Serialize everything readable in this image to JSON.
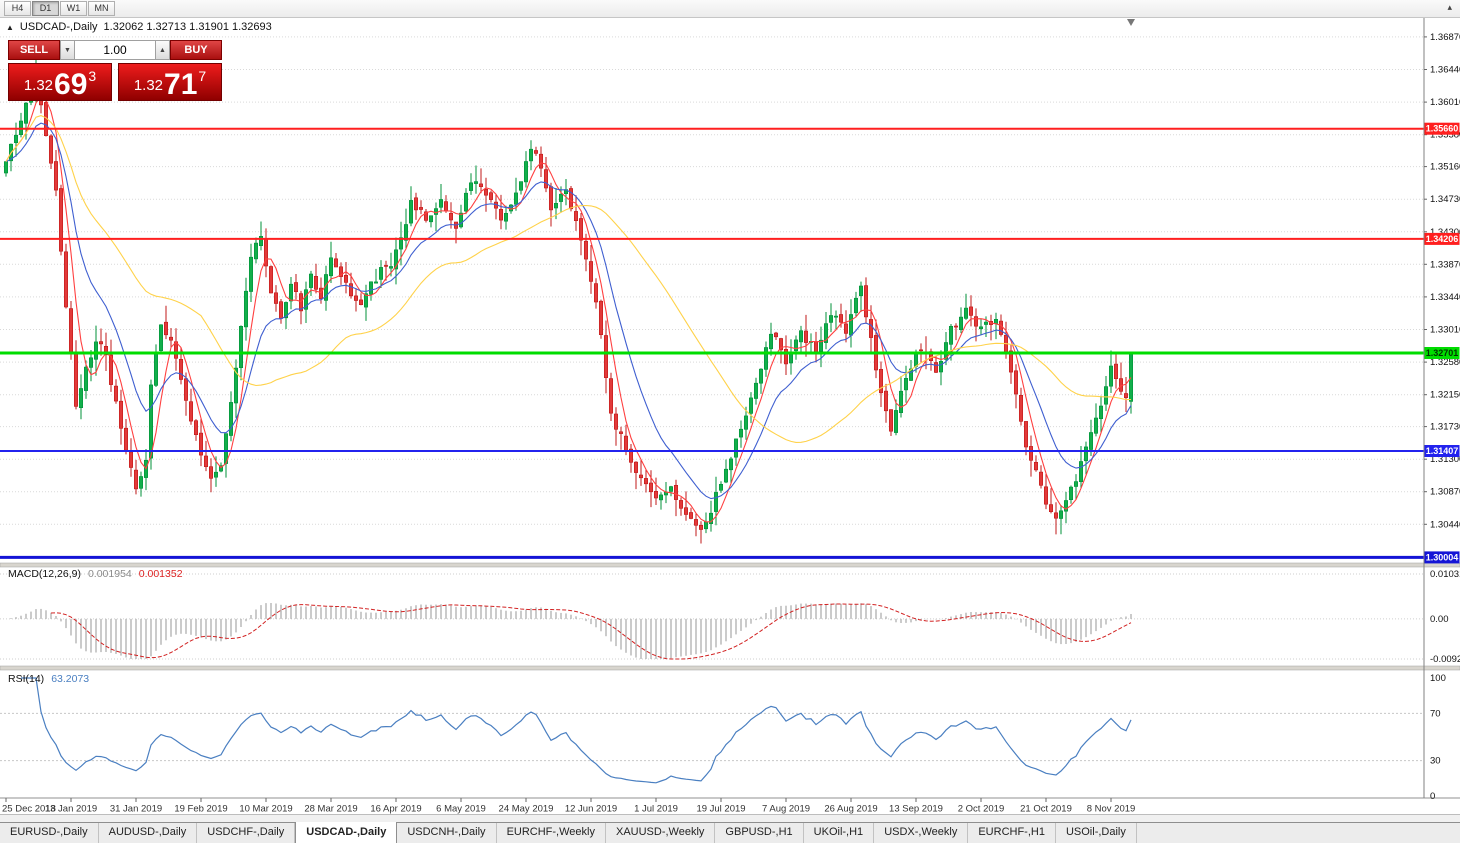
{
  "window": {
    "overflow_icon": "▴"
  },
  "toolbar": {
    "timeframes": [
      {
        "label": "H4",
        "active": false
      },
      {
        "label": "D1",
        "active": true
      },
      {
        "label": "W1",
        "active": false
      },
      {
        "label": "MN",
        "active": false
      }
    ]
  },
  "chart_header": {
    "collapse_icon": "▲",
    "title": "USDCAD-,Daily",
    "ohlc_text": "1.32062 1.32713 1.31901 1.32693"
  },
  "trade_panel": {
    "sell_label": "SELL",
    "buy_label": "BUY",
    "volume": "1.00",
    "spin_down_icon": "▼",
    "spin_up_icon": "▲",
    "sell_price": {
      "figure": "1.32",
      "pips": "69",
      "tick": "3"
    },
    "buy_price": {
      "figure": "1.32",
      "pips": "71",
      "tick": "7"
    }
  },
  "macd_panel": {
    "name": "MACD(12,26,9)",
    "value_main": "0.001954",
    "value_signal": "0.001352",
    "axis_labels": [
      "0.010311",
      "0.00",
      "-0.00920"
    ],
    "axis_values": [
      0.010311,
      0,
      -0.0092
    ]
  },
  "rsi_panel": {
    "name": "RSI(14)",
    "value": "63.2073",
    "axis_labels": [
      "100",
      "70",
      "30",
      "0"
    ],
    "axis_values": [
      100,
      70,
      30,
      0
    ],
    "level_lines": [
      70,
      30
    ]
  },
  "price_axis": {
    "tick_labels": [
      "1.36870",
      "1.36440",
      "1.36010",
      "1.35580",
      "1.35160",
      "1.34730",
      "1.34300",
      "1.33870",
      "1.33440",
      "1.33010",
      "1.32580",
      "1.32150",
      "1.31730",
      "1.31300",
      "1.30870",
      "1.30440"
    ]
  },
  "tabs": [
    {
      "label": "EURUSD-,Daily",
      "active": false
    },
    {
      "label": "AUDUSD-,Daily",
      "active": false
    },
    {
      "label": "USDCHF-,Daily",
      "active": false
    },
    {
      "label": "USDCAD-,Daily",
      "active": true
    },
    {
      "label": "USDCNH-,Daily",
      "active": false
    },
    {
      "label": "EURCHF-,Weekly",
      "active": false
    },
    {
      "label": "XAUUSD-,Weekly",
      "active": false
    },
    {
      "label": "GBPUSD-,H1",
      "active": false
    },
    {
      "label": "UKOil-,H1",
      "active": false
    },
    {
      "label": "USDX-,Weekly",
      "active": false
    },
    {
      "label": "EURCHF-,H1",
      "active": false
    },
    {
      "label": "USOil-,Daily",
      "active": false
    }
  ],
  "chart_data": {
    "type": "candlestick",
    "symbol": "USDCAD",
    "timeframe": "Daily",
    "title": "USDCAD-,Daily",
    "last_candle": {
      "open": 1.32062,
      "high": 1.32713,
      "low": 1.31901,
      "close": 1.32693
    },
    "candle_count": 226,
    "y_range": [
      1.2993,
      1.3712
    ],
    "close_anchors": [
      [
        0,
        1.3525
      ],
      [
        3,
        1.358
      ],
      [
        6,
        1.3645
      ],
      [
        8,
        1.356
      ],
      [
        10,
        1.348
      ],
      [
        12,
        1.333
      ],
      [
        14,
        1.3195
      ],
      [
        16,
        1.3245
      ],
      [
        18,
        1.329
      ],
      [
        20,
        1.3265
      ],
      [
        22,
        1.32
      ],
      [
        24,
        1.314
      ],
      [
        26,
        1.309
      ],
      [
        28,
        1.3125
      ],
      [
        29,
        1.323
      ],
      [
        31,
        1.331
      ],
      [
        33,
        1.3285
      ],
      [
        35,
        1.323
      ],
      [
        37,
        1.318
      ],
      [
        39,
        1.314
      ],
      [
        41,
        1.31
      ],
      [
        43,
        1.3125
      ],
      [
        45,
        1.3205
      ],
      [
        47,
        1.33
      ],
      [
        49,
        1.3395
      ],
      [
        51,
        1.343
      ],
      [
        53,
        1.335
      ],
      [
        55,
        1.332
      ],
      [
        57,
        1.336
      ],
      [
        59,
        1.333
      ],
      [
        61,
        1.337
      ],
      [
        63,
        1.3345
      ],
      [
        65,
        1.339
      ],
      [
        68,
        1.336
      ],
      [
        71,
        1.3335
      ],
      [
        74,
        1.337
      ],
      [
        77,
        1.339
      ],
      [
        79,
        1.342
      ],
      [
        81,
        1.347
      ],
      [
        84,
        1.345
      ],
      [
        87,
        1.347
      ],
      [
        90,
        1.344
      ],
      [
        93,
        1.35
      ],
      [
        96,
        1.348
      ],
      [
        99,
        1.345
      ],
      [
        102,
        1.348
      ],
      [
        105,
        1.354
      ],
      [
        107,
        1.352
      ],
      [
        109,
        1.3465
      ],
      [
        112,
        1.3485
      ],
      [
        115,
        1.342
      ],
      [
        118,
        1.334
      ],
      [
        121,
        1.3185
      ],
      [
        124,
        1.3145
      ],
      [
        127,
        1.3105
      ],
      [
        130,
        1.308
      ],
      [
        133,
        1.3095
      ],
      [
        136,
        1.3055
      ],
      [
        139,
        1.3032
      ],
      [
        141,
        1.306
      ],
      [
        144,
        1.312
      ],
      [
        147,
        1.317
      ],
      [
        150,
        1.323
      ],
      [
        153,
        1.33
      ],
      [
        156,
        1.326
      ],
      [
        159,
        1.33
      ],
      [
        162,
        1.327
      ],
      [
        165,
        1.332
      ],
      [
        168,
        1.33
      ],
      [
        171,
        1.336
      ],
      [
        174,
        1.325
      ],
      [
        177,
        1.3165
      ],
      [
        180,
        1.324
      ],
      [
        183,
        1.328
      ],
      [
        186,
        1.3245
      ],
      [
        189,
        1.33
      ],
      [
        192,
        1.333
      ],
      [
        195,
        1.33
      ],
      [
        198,
        1.332
      ],
      [
        201,
        1.324
      ],
      [
        204,
        1.315
      ],
      [
        207,
        1.309
      ],
      [
        210,
        1.305
      ],
      [
        213,
        1.309
      ],
      [
        216,
        1.314
      ],
      [
        219,
        1.3205
      ],
      [
        221,
        1.325
      ],
      [
        223,
        1.3215
      ],
      [
        224,
        1.3206
      ],
      [
        225,
        1.32693
      ]
    ],
    "noise": {
      "seed": 9,
      "close_amp": 0.0013,
      "gap_amp": 0.0007,
      "wick_amp": 0.0022
    },
    "levels": [
      {
        "price": 1.3566,
        "label": "1.35660",
        "color": "#FF1F1F",
        "width": 2,
        "text_color": "#FFFFFF"
      },
      {
        "price": 1.34206,
        "label": "1.34206",
        "color": "#FF1F1F",
        "width": 2,
        "text_color": "#FFFFFF"
      },
      {
        "price": 1.32701,
        "label": "1.32701",
        "color": "#00DD00",
        "width": 3,
        "text_color": "#003300"
      },
      {
        "price": 1.31407,
        "label": "1.31407",
        "color": "#2222EE",
        "width": 2,
        "text_color": "#FFFFFF"
      },
      {
        "price": 1.30004,
        "label": "1.30004",
        "color": "#1414D6",
        "width": 3,
        "text_color": "#FFFFFF"
      }
    ],
    "up_color": "#00913A",
    "up_fill": "#12AF4B",
    "down_color": "#C01818",
    "down_fill": "#E23A3A",
    "ma_lines": [
      {
        "type": "sma",
        "period": 5,
        "color": "#FF4040"
      },
      {
        "type": "ema",
        "period": 13,
        "color": "#3F5FD0"
      },
      {
        "type": "sma",
        "period": 40,
        "color": "#FFD24A"
      }
    ],
    "macd": {
      "fast": 12,
      "slow": 26,
      "signal": 9,
      "hist_color": "#A8A8A8",
      "signal_color": "#D22222"
    },
    "rsi": {
      "period": 14,
      "color": "#4A7FC1"
    },
    "x_dates": [
      "25 Dec 2018",
      "13 Jan 2019",
      "31 Jan 2019",
      "19 Feb 2019",
      "10 Mar 2019",
      "28 Mar 2019",
      "16 Apr 2019",
      "6 May 2019",
      "24 May 2019",
      "12 Jun 2019",
      "1 Jul 2019",
      "19 Jul 2019",
      "7 Aug 2019",
      "26 Aug 2019",
      "13 Sep 2019",
      "2 Oct 2019",
      "21 Oct 2019",
      "8 Nov 2019"
    ],
    "tick_every_days": 13
  }
}
